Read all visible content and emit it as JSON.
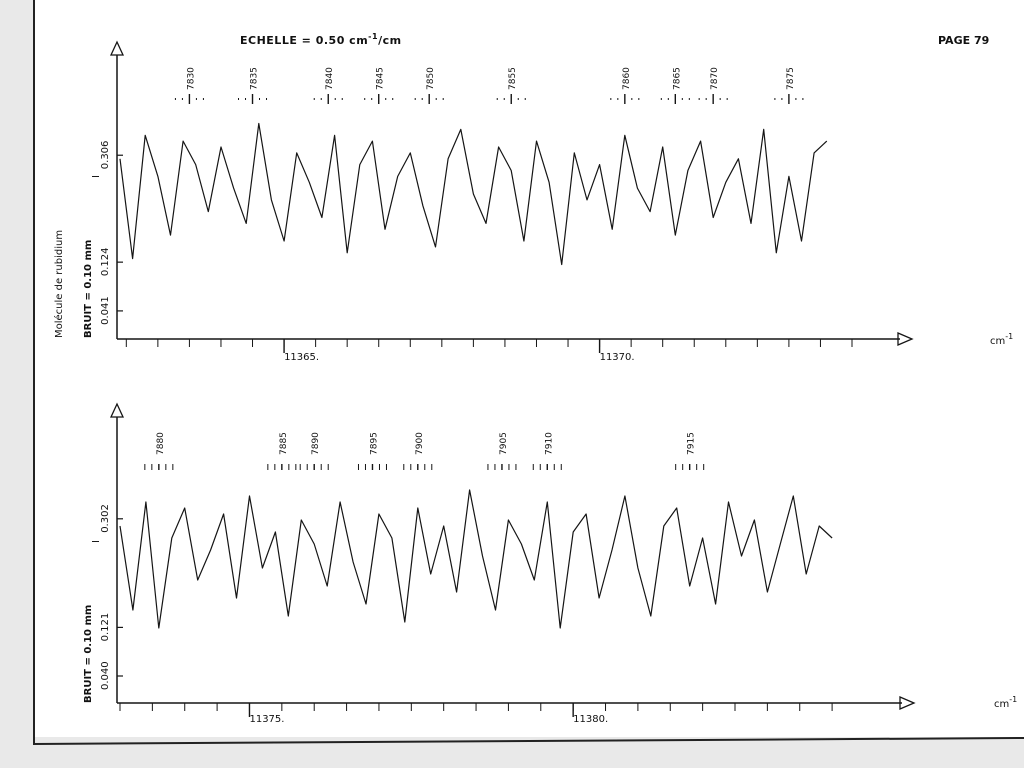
{
  "page": {
    "header": "ECHELLE = 0.50 cm",
    "header_exp": "-1",
    "header_tail": "/cm",
    "page_label": "PAGE 79",
    "side_title": "Molécule de rubidium"
  },
  "colors": {
    "ink": "#151515",
    "paper": "#ffffff",
    "background": "#e9e9e9"
  },
  "chart_data": [
    {
      "type": "line",
      "panel": "top",
      "title": "",
      "xlabel": "cm",
      "xlabel_exp": "-1",
      "ylabel": "BRUIT = 0.10 mm",
      "ymark": "I",
      "xticks": [
        "11365.",
        "11370."
      ],
      "x_range": [
        11362.4,
        11374.0
      ],
      "yticks": [
        "0.306",
        "0.124",
        "0.041"
      ],
      "ylim": [
        0,
        0.4
      ],
      "ytick_values": [
        0.306,
        0.124,
        0.041
      ],
      "line_labels": [
        "7830",
        "7835",
        "7840",
        "7845",
        "7850",
        "7855",
        "7860",
        "7865",
        "7870",
        "7875"
      ],
      "line_positions": [
        11363.5,
        11364.5,
        11365.7,
        11366.5,
        11367.3,
        11368.6,
        11370.4,
        11371.2,
        11371.8,
        11373.0
      ],
      "series": [
        {
          "x": [
            11362.4,
            11362.6,
            11362.8,
            11363.0,
            11363.2,
            11363.4,
            11363.6,
            11363.8,
            11364.0,
            11364.2,
            11364.4,
            11364.6,
            11364.8,
            11365.0,
            11365.2,
            11365.4,
            11365.6,
            11365.8,
            11366.0,
            11366.2,
            11366.4,
            11366.6,
            11366.8,
            11367.0,
            11367.2,
            11367.4,
            11367.6,
            11367.8,
            11368.0,
            11368.2,
            11368.4,
            11368.6,
            11368.8,
            11369.0,
            11369.2,
            11369.4,
            11369.6,
            11369.8,
            11370.0,
            11370.2,
            11370.4,
            11370.6,
            11370.8,
            11371.0,
            11371.2,
            11371.4,
            11371.6,
            11371.8,
            11372.0,
            11372.2,
            11372.4,
            11372.6,
            11372.8,
            11373.0,
            11373.2,
            11373.4,
            11373.6
          ],
          "y": [
            0.3,
            0.13,
            0.34,
            0.27,
            0.17,
            0.33,
            0.29,
            0.21,
            0.32,
            0.25,
            0.19,
            0.36,
            0.23,
            0.16,
            0.31,
            0.26,
            0.2,
            0.34,
            0.14,
            0.29,
            0.33,
            0.18,
            0.27,
            0.31,
            0.22,
            0.15,
            0.3,
            0.35,
            0.24,
            0.19,
            0.32,
            0.28,
            0.16,
            0.33,
            0.26,
            0.12,
            0.31,
            0.23,
            0.29,
            0.18,
            0.34,
            0.25,
            0.21,
            0.32,
            0.17,
            0.28,
            0.33,
            0.2,
            0.26,
            0.3,
            0.19,
            0.35,
            0.14,
            0.27,
            0.16,
            0.31,
            0.33
          ]
        }
      ]
    },
    {
      "type": "line",
      "panel": "bottom",
      "title": "",
      "xlabel": "cm",
      "xlabel_exp": "-1",
      "ylabel": "BRUIT = 0.10 mm",
      "ymark": "I",
      "xticks": [
        "11375.",
        "11380."
      ],
      "x_range": [
        11373.0,
        11384.4
      ],
      "yticks": [
        "0.302",
        "0.121",
        "0.040"
      ],
      "ylim": [
        0,
        0.4
      ],
      "ytick_values": [
        0.302,
        0.121,
        0.04
      ],
      "line_labels": [
        "7880",
        "7885",
        "7890",
        "7895",
        "7900",
        "7905",
        "7910",
        "7915"
      ],
      "line_positions": [
        11373.6,
        11375.5,
        11376.0,
        11376.9,
        11377.6,
        11378.9,
        11379.6,
        11381.8
      ],
      "series": [
        {
          "x": [
            11373.0,
            11373.2,
            11373.4,
            11373.6,
            11373.8,
            11374.0,
            11374.2,
            11374.4,
            11374.6,
            11374.8,
            11375.0,
            11375.2,
            11375.4,
            11375.6,
            11375.8,
            11376.0,
            11376.2,
            11376.4,
            11376.6,
            11376.8,
            11377.0,
            11377.2,
            11377.4,
            11377.6,
            11377.8,
            11378.0,
            11378.2,
            11378.4,
            11378.6,
            11378.8,
            11379.0,
            11379.2,
            11379.4,
            11379.6,
            11379.8,
            11380.0,
            11380.2,
            11380.4,
            11380.6,
            11380.8,
            11381.0,
            11381.2,
            11381.4,
            11381.6,
            11381.8,
            11382.0,
            11382.2,
            11382.4,
            11382.6,
            11382.8,
            11383.0,
            11383.2,
            11383.4,
            11383.6,
            11383.8,
            11384.0
          ],
          "y": [
            0.29,
            0.15,
            0.33,
            0.12,
            0.27,
            0.32,
            0.2,
            0.25,
            0.31,
            0.17,
            0.34,
            0.22,
            0.28,
            0.14,
            0.3,
            0.26,
            0.19,
            0.33,
            0.23,
            0.16,
            0.31,
            0.27,
            0.13,
            0.32,
            0.21,
            0.29,
            0.18,
            0.35,
            0.24,
            0.15,
            0.3,
            0.26,
            0.2,
            0.33,
            0.12,
            0.28,
            0.31,
            0.17,
            0.25,
            0.34,
            0.22,
            0.14,
            0.29,
            0.32,
            0.19,
            0.27,
            0.16,
            0.33,
            0.24,
            0.3,
            0.18,
            0.26,
            0.34,
            0.21,
            0.29,
            0.27
          ]
        }
      ]
    }
  ]
}
